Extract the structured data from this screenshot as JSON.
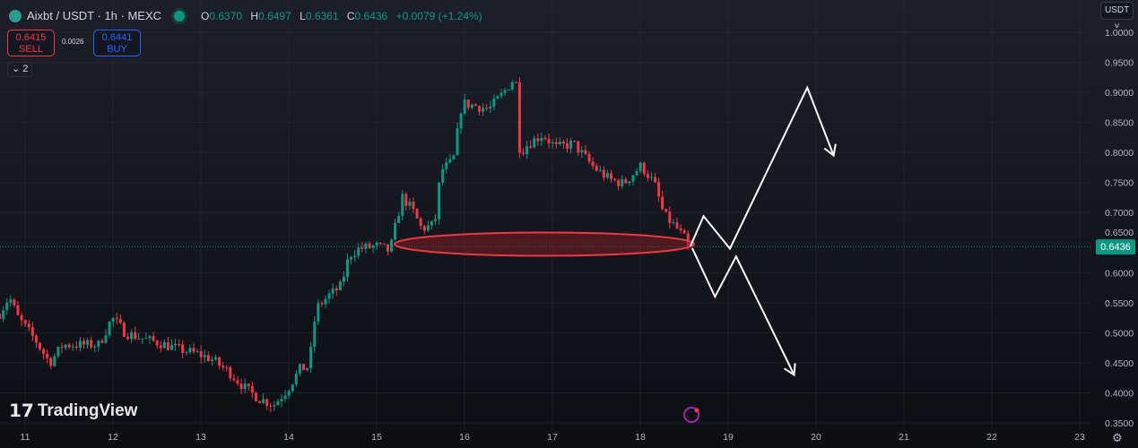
{
  "header": {
    "symbol": "Aixbt / USDT · 1h · MEXC",
    "open_label": "O",
    "open": "0.6370",
    "high_label": "H",
    "high": "0.6497",
    "low_label": "L",
    "low": "0.6361",
    "close_label": "C",
    "close": "0.6436",
    "change": "+0.0079 (+1.24%)"
  },
  "trade": {
    "sell_price": "0.6415",
    "sell_label": "SELL",
    "spread": "0.0026",
    "buy_price": "0.6441",
    "buy_label": "BUY"
  },
  "indicators_toggle": "2",
  "currency_button": "USDT",
  "branding": "TradingView",
  "colors": {
    "up": "#089981",
    "down": "#f23645",
    "ellipse": "#f23645",
    "arrows": "#ffffff"
  },
  "chart_data": {
    "type": "candlestick",
    "interval": "1h",
    "current_price": 0.6436,
    "current_price_label": "0.6436",
    "ylim": [
      0.35,
      1.0
    ],
    "y_ticks": [
      "1.0000",
      "0.9500",
      "0.9000",
      "0.8500",
      "0.8000",
      "0.7500",
      "0.7000",
      "0.6500",
      "0.6000",
      "0.5500",
      "0.5000",
      "0.4500",
      "0.4000",
      "0.3500"
    ],
    "x_ticks": [
      "11",
      "12",
      "13",
      "14",
      "15",
      "16",
      "17",
      "18",
      "19",
      "20",
      "21",
      "22",
      "23"
    ],
    "close_path": [
      [
        10.71,
        0.532
      ],
      [
        10.82,
        0.56
      ],
      [
        10.92,
        0.525
      ],
      [
        11.12,
        0.487
      ],
      [
        11.28,
        0.45
      ],
      [
        11.43,
        0.48
      ],
      [
        11.63,
        0.48
      ],
      [
        11.84,
        0.48
      ],
      [
        11.99,
        0.525
      ],
      [
        12.14,
        0.5
      ],
      [
        12.35,
        0.49
      ],
      [
        12.55,
        0.482
      ],
      [
        12.76,
        0.472
      ],
      [
        12.96,
        0.465
      ],
      [
        13.11,
        0.457
      ],
      [
        13.32,
        0.435
      ],
      [
        13.52,
        0.405
      ],
      [
        13.67,
        0.39
      ],
      [
        13.83,
        0.38
      ],
      [
        13.98,
        0.405
      ],
      [
        14.13,
        0.44
      ],
      [
        14.23,
        0.443
      ],
      [
        14.31,
        0.54
      ],
      [
        14.44,
        0.56
      ],
      [
        14.59,
        0.577
      ],
      [
        14.69,
        0.629
      ],
      [
        14.8,
        0.64
      ],
      [
        15.0,
        0.644
      ],
      [
        15.15,
        0.636
      ],
      [
        15.29,
        0.726
      ],
      [
        15.41,
        0.704
      ],
      [
        15.51,
        0.673
      ],
      [
        15.66,
        0.68
      ],
      [
        15.73,
        0.77
      ],
      [
        15.87,
        0.785
      ],
      [
        15.97,
        0.882
      ],
      [
        16.12,
        0.878
      ],
      [
        16.28,
        0.872
      ],
      [
        16.43,
        0.897
      ],
      [
        16.58,
        0.927
      ],
      [
        16.63,
        0.8
      ],
      [
        16.73,
        0.815
      ],
      [
        16.89,
        0.83
      ],
      [
        17.04,
        0.808
      ],
      [
        17.24,
        0.815
      ],
      [
        17.45,
        0.778
      ],
      [
        17.65,
        0.755
      ],
      [
        17.81,
        0.748
      ],
      [
        18.01,
        0.778
      ],
      [
        18.16,
        0.748
      ],
      [
        18.27,
        0.696
      ],
      [
        18.42,
        0.673
      ],
      [
        18.57,
        0.6436
      ]
    ],
    "annotations": {
      "support_zone_price": 0.64,
      "bull_path": [
        [
          18.57,
          0.644
        ],
        [
          18.72,
          0.694
        ],
        [
          19.02,
          0.64
        ],
        [
          19.9,
          0.908
        ],
        [
          20.2,
          0.795
        ]
      ],
      "bear_path": [
        [
          18.59,
          0.641
        ],
        [
          18.85,
          0.56
        ],
        [
          19.09,
          0.627
        ],
        [
          19.75,
          0.43
        ]
      ]
    }
  }
}
